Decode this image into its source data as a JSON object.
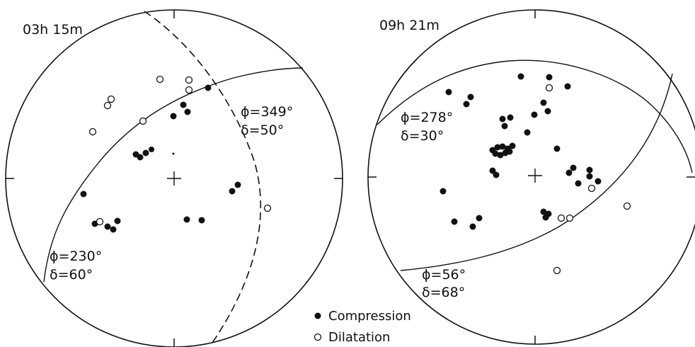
{
  "left_panel": {
    "time_label": "03h 15m",
    "planes": [
      {
        "phi": "ϕ=349°",
        "delta": "δ=50°"
      },
      {
        "phi": "ϕ=230°",
        "delta": "δ=60°"
      }
    ]
  },
  "right_panel": {
    "time_label": "09h 21m",
    "planes": [
      {
        "phi": "ϕ=278°",
        "delta": "δ=30°"
      },
      {
        "phi": "ϕ=56°",
        "delta": "δ=68°"
      }
    ]
  },
  "legend": {
    "compression": "Compression",
    "dilatation": "Dilatation"
  }
}
